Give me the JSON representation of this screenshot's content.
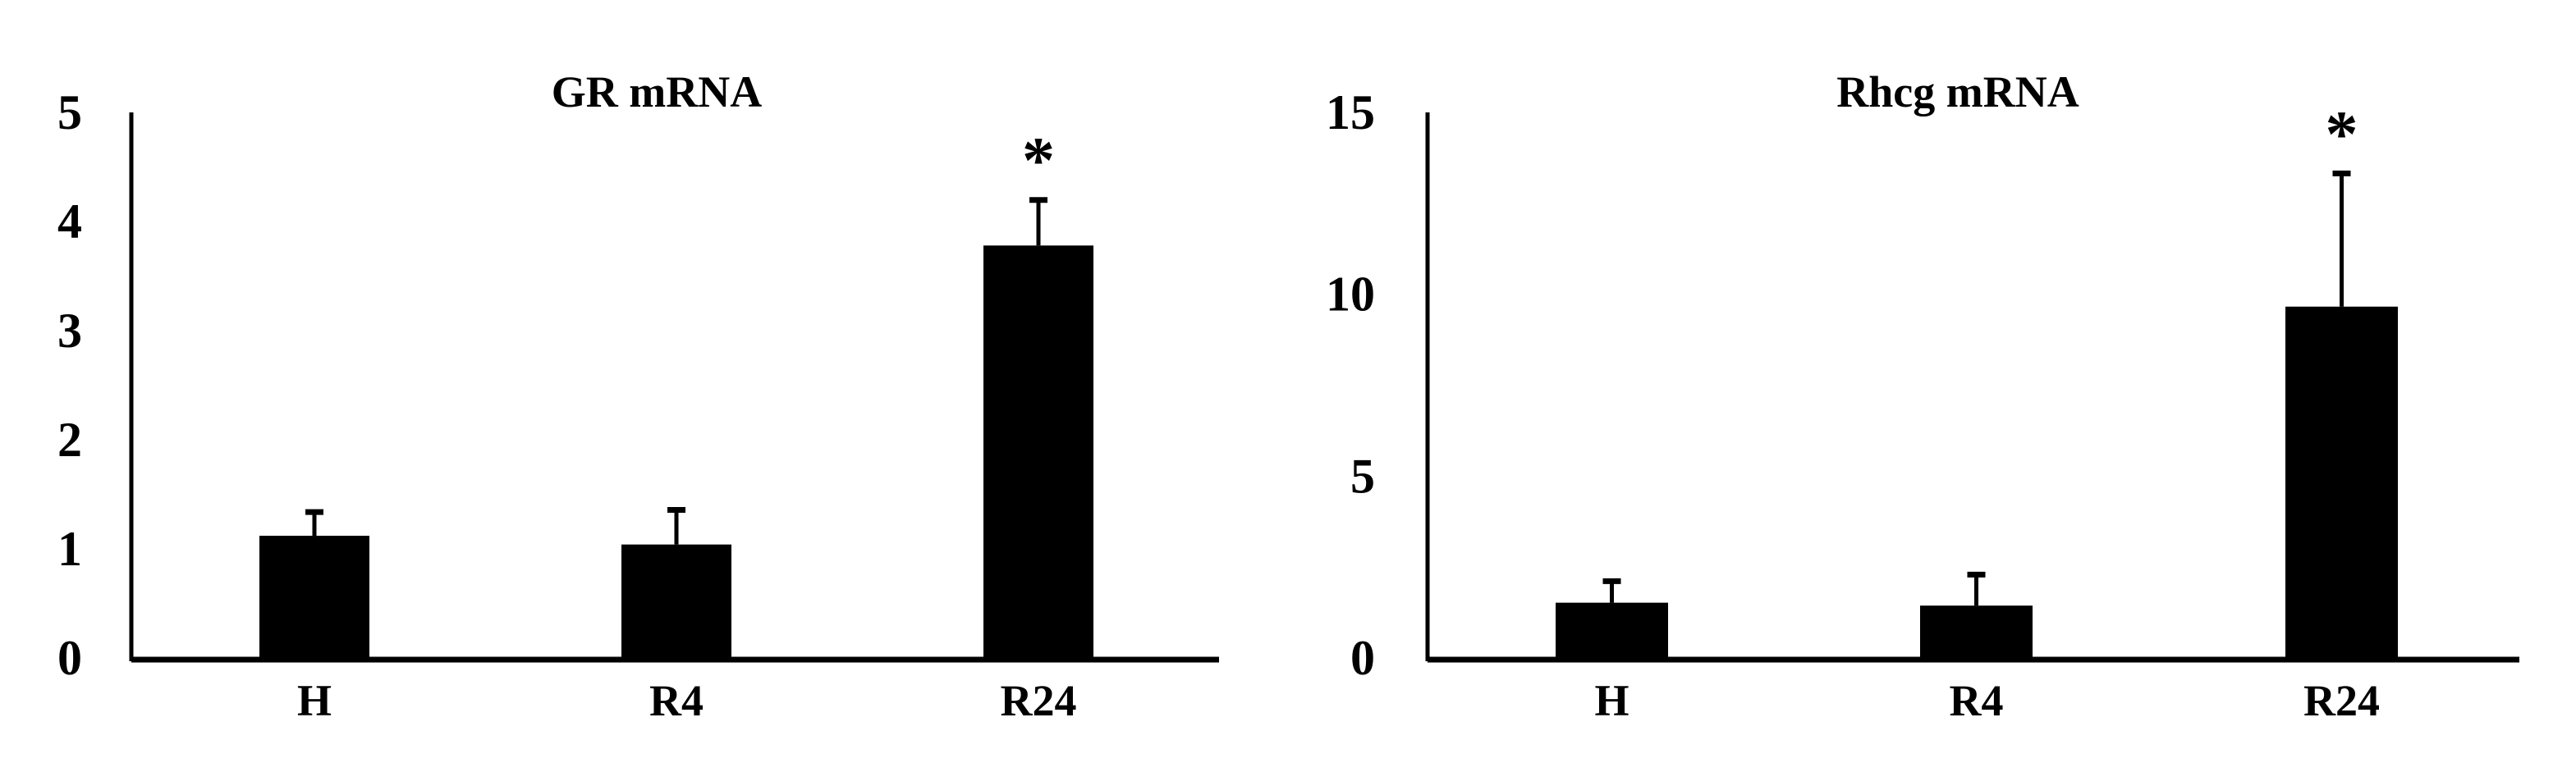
{
  "chart_data": [
    {
      "type": "bar",
      "title": "GR mRNA",
      "xlabel": "",
      "ylabel": "",
      "categories": [
        "H",
        "R4",
        "R24"
      ],
      "values": [
        1.12,
        1.04,
        3.78
      ],
      "error_upper": [
        0.24,
        0.34,
        0.44
      ],
      "annotations": [
        "",
        "",
        "*"
      ],
      "ylim": [
        0,
        5
      ],
      "yticks": [
        "0",
        "1",
        "2",
        "3",
        "4",
        "5"
      ],
      "grid": false,
      "bar_color": "#000000"
    },
    {
      "type": "bar",
      "title": "Rhcg mRNA",
      "xlabel": "",
      "ylabel": "",
      "categories": [
        "H",
        "R4",
        "R24"
      ],
      "values": [
        1.52,
        1.44,
        9.66
      ],
      "error_upper": [
        0.66,
        0.92,
        3.73
      ],
      "annotations": [
        "",
        "",
        "*"
      ],
      "ylim": [
        0,
        15
      ],
      "yticks": [
        "0",
        "5",
        "10",
        "15"
      ],
      "grid": false,
      "bar_color": "#000000"
    }
  ]
}
